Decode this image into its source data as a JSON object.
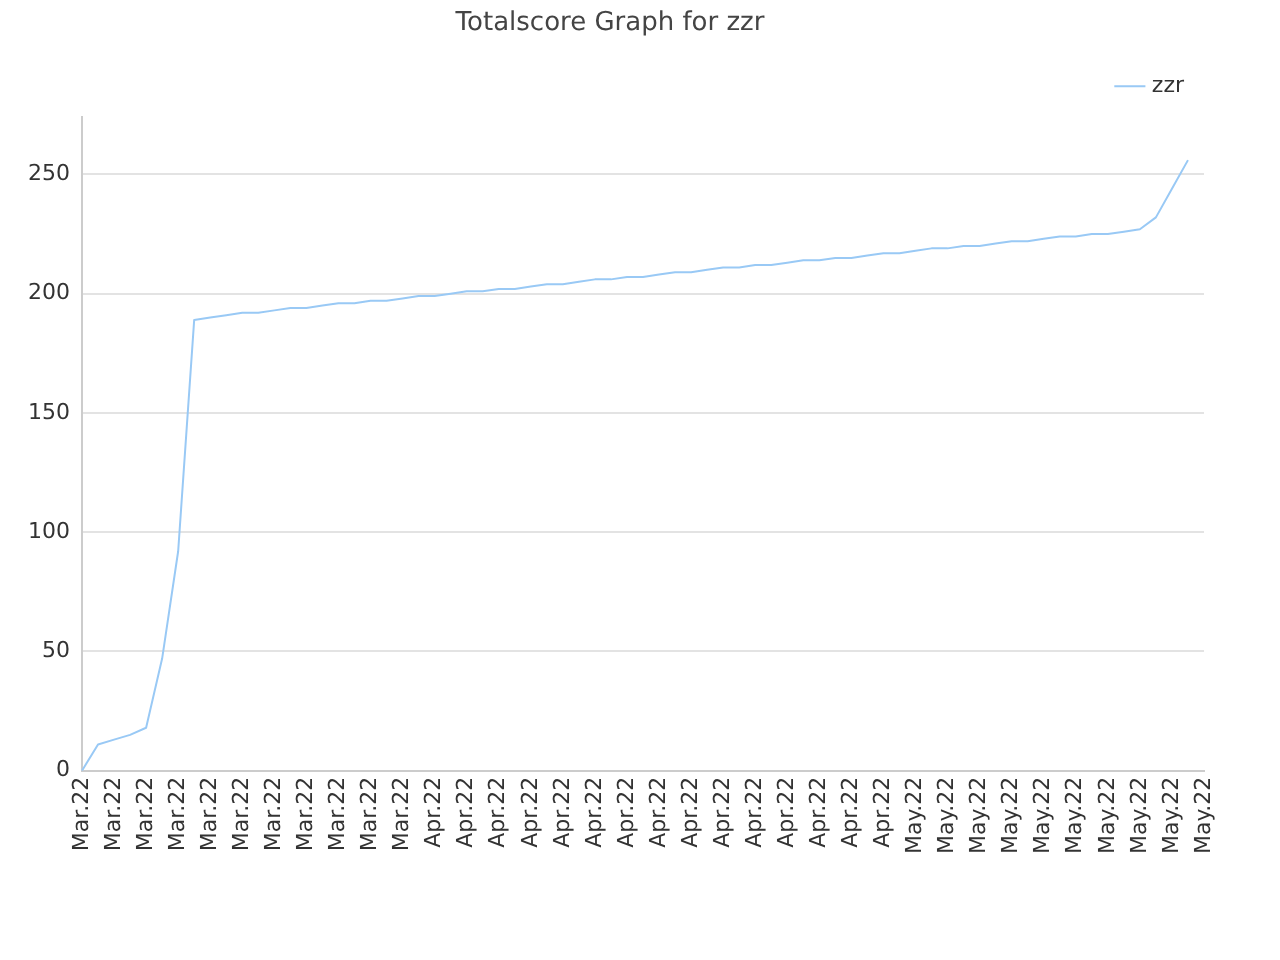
{
  "chart_data": {
    "type": "line",
    "title": "Totalscore Graph for zzr",
    "categories": [
      "Mar.22",
      null,
      "Mar.22",
      null,
      "Mar.22",
      null,
      "Mar.22",
      null,
      "Mar.22",
      null,
      "Mar.22",
      null,
      "Mar.22",
      null,
      "Mar.22",
      null,
      "Mar.22",
      null,
      "Mar.22",
      null,
      "Mar.22",
      null,
      "Apr.22",
      null,
      "Apr.22",
      null,
      "Apr.22",
      null,
      "Apr.22",
      null,
      "Apr.22",
      null,
      "Apr.22",
      null,
      "Apr.22",
      null,
      "Apr.22",
      null,
      "Apr.22",
      null,
      "Apr.22",
      null,
      "Apr.22",
      null,
      "Apr.22",
      null,
      "Apr.22",
      null,
      "Apr.22",
      null,
      "Apr.22",
      null,
      "May.22",
      null,
      "May.22",
      null,
      "May.22",
      null,
      "May.22",
      null,
      "May.22",
      null,
      "May.22",
      null,
      "May.22",
      null,
      "May.22",
      null,
      "May.22",
      null,
      "May.22"
    ],
    "ylim": [
      0,
      274
    ],
    "yticks": [
      0,
      50,
      100,
      150,
      200,
      250
    ],
    "grid": "y",
    "legend": "top right",
    "marker": "none",
    "line_style": "solid",
    "series": [
      {
        "name": "zzr",
        "color": "#99c9f5",
        "values": [
          0,
          11,
          13,
          15,
          18,
          47,
          92,
          189,
          190,
          191,
          192,
          192,
          193,
          194,
          194,
          195,
          196,
          196,
          197,
          197,
          198,
          199,
          199,
          200,
          201,
          201,
          202,
          202,
          203,
          204,
          204,
          205,
          206,
          206,
          207,
          207,
          208,
          209,
          209,
          210,
          211,
          211,
          212,
          212,
          213,
          214,
          214,
          215,
          215,
          216,
          217,
          217,
          218,
          219,
          219,
          220,
          220,
          221,
          222,
          222,
          223,
          224,
          224,
          225,
          225,
          226,
          227,
          232,
          244,
          256,
          null
        ]
      }
    ]
  }
}
